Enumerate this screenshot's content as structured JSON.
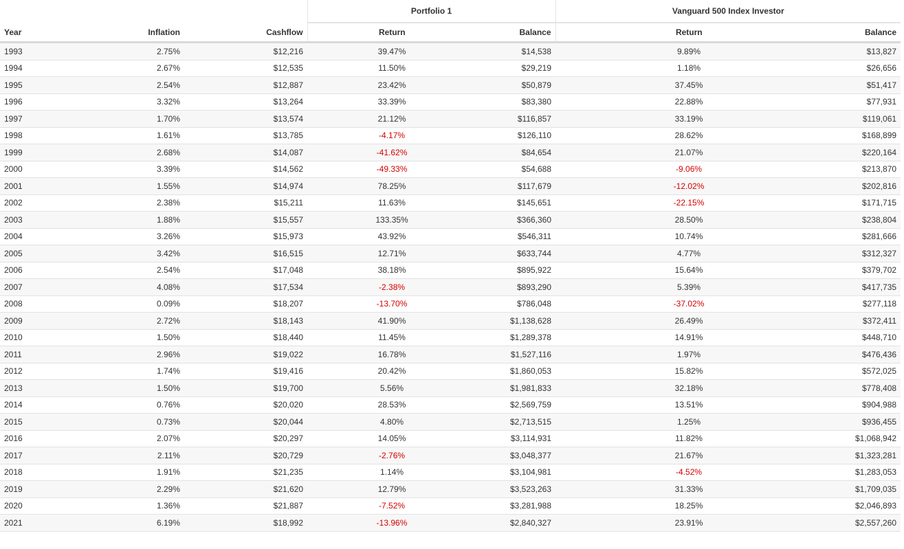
{
  "table": {
    "groups": [
      "Portfolio 1",
      "Vanguard 500 Index Investor"
    ],
    "columns": [
      "Year",
      "Inflation",
      "Cashflow",
      "Return",
      "Balance",
      "Return",
      "Balance"
    ],
    "rows": [
      [
        "1993",
        "2.75%",
        "$12,216",
        "39.47%",
        "$14,538",
        "9.89%",
        "$13,827"
      ],
      [
        "1994",
        "2.67%",
        "$12,535",
        "11.50%",
        "$29,219",
        "1.18%",
        "$26,656"
      ],
      [
        "1995",
        "2.54%",
        "$12,887",
        "23.42%",
        "$50,879",
        "37.45%",
        "$51,417"
      ],
      [
        "1996",
        "3.32%",
        "$13,264",
        "33.39%",
        "$83,380",
        "22.88%",
        "$77,931"
      ],
      [
        "1997",
        "1.70%",
        "$13,574",
        "21.12%",
        "$116,857",
        "33.19%",
        "$119,061"
      ],
      [
        "1998",
        "1.61%",
        "$13,785",
        "-4.17%",
        "$126,110",
        "28.62%",
        "$168,899"
      ],
      [
        "1999",
        "2.68%",
        "$14,087",
        "-41.62%",
        "$84,654",
        "21.07%",
        "$220,164"
      ],
      [
        "2000",
        "3.39%",
        "$14,562",
        "-49.33%",
        "$54,688",
        "-9.06%",
        "$213,870"
      ],
      [
        "2001",
        "1.55%",
        "$14,974",
        "78.25%",
        "$117,679",
        "-12.02%",
        "$202,816"
      ],
      [
        "2002",
        "2.38%",
        "$15,211",
        "11.63%",
        "$145,651",
        "-22.15%",
        "$171,715"
      ],
      [
        "2003",
        "1.88%",
        "$15,557",
        "133.35%",
        "$366,360",
        "28.50%",
        "$238,804"
      ],
      [
        "2004",
        "3.26%",
        "$15,973",
        "43.92%",
        "$546,311",
        "10.74%",
        "$281,666"
      ],
      [
        "2005",
        "3.42%",
        "$16,515",
        "12.71%",
        "$633,744",
        "4.77%",
        "$312,327"
      ],
      [
        "2006",
        "2.54%",
        "$17,048",
        "38.18%",
        "$895,922",
        "15.64%",
        "$379,702"
      ],
      [
        "2007",
        "4.08%",
        "$17,534",
        "-2.38%",
        "$893,290",
        "5.39%",
        "$417,735"
      ],
      [
        "2008",
        "0.09%",
        "$18,207",
        "-13.70%",
        "$786,048",
        "-37.02%",
        "$277,118"
      ],
      [
        "2009",
        "2.72%",
        "$18,143",
        "41.90%",
        "$1,138,628",
        "26.49%",
        "$372,411"
      ],
      [
        "2010",
        "1.50%",
        "$18,440",
        "11.45%",
        "$1,289,378",
        "14.91%",
        "$448,710"
      ],
      [
        "2011",
        "2.96%",
        "$19,022",
        "16.78%",
        "$1,527,116",
        "1.97%",
        "$476,436"
      ],
      [
        "2012",
        "1.74%",
        "$19,416",
        "20.42%",
        "$1,860,053",
        "15.82%",
        "$572,025"
      ],
      [
        "2013",
        "1.50%",
        "$19,700",
        "5.56%",
        "$1,981,833",
        "32.18%",
        "$778,408"
      ],
      [
        "2014",
        "0.76%",
        "$20,020",
        "28.53%",
        "$2,569,759",
        "13.51%",
        "$904,988"
      ],
      [
        "2015",
        "0.73%",
        "$20,044",
        "4.80%",
        "$2,713,515",
        "1.25%",
        "$936,455"
      ],
      [
        "2016",
        "2.07%",
        "$20,297",
        "14.05%",
        "$3,114,931",
        "11.82%",
        "$1,068,942"
      ],
      [
        "2017",
        "2.11%",
        "$20,729",
        "-2.76%",
        "$3,048,377",
        "21.67%",
        "$1,323,281"
      ],
      [
        "2018",
        "1.91%",
        "$21,235",
        "1.14%",
        "$3,104,981",
        "-4.52%",
        "$1,283,053"
      ],
      [
        "2019",
        "2.29%",
        "$21,620",
        "12.79%",
        "$3,523,263",
        "31.33%",
        "$1,709,035"
      ],
      [
        "2020",
        "1.36%",
        "$21,887",
        "-7.52%",
        "$3,281,988",
        "18.25%",
        "$2,046,893"
      ],
      [
        "2021",
        "6.19%",
        "$18,992",
        "-13.96%",
        "$2,840,327",
        "23.91%",
        "$2,557,260"
      ]
    ]
  }
}
